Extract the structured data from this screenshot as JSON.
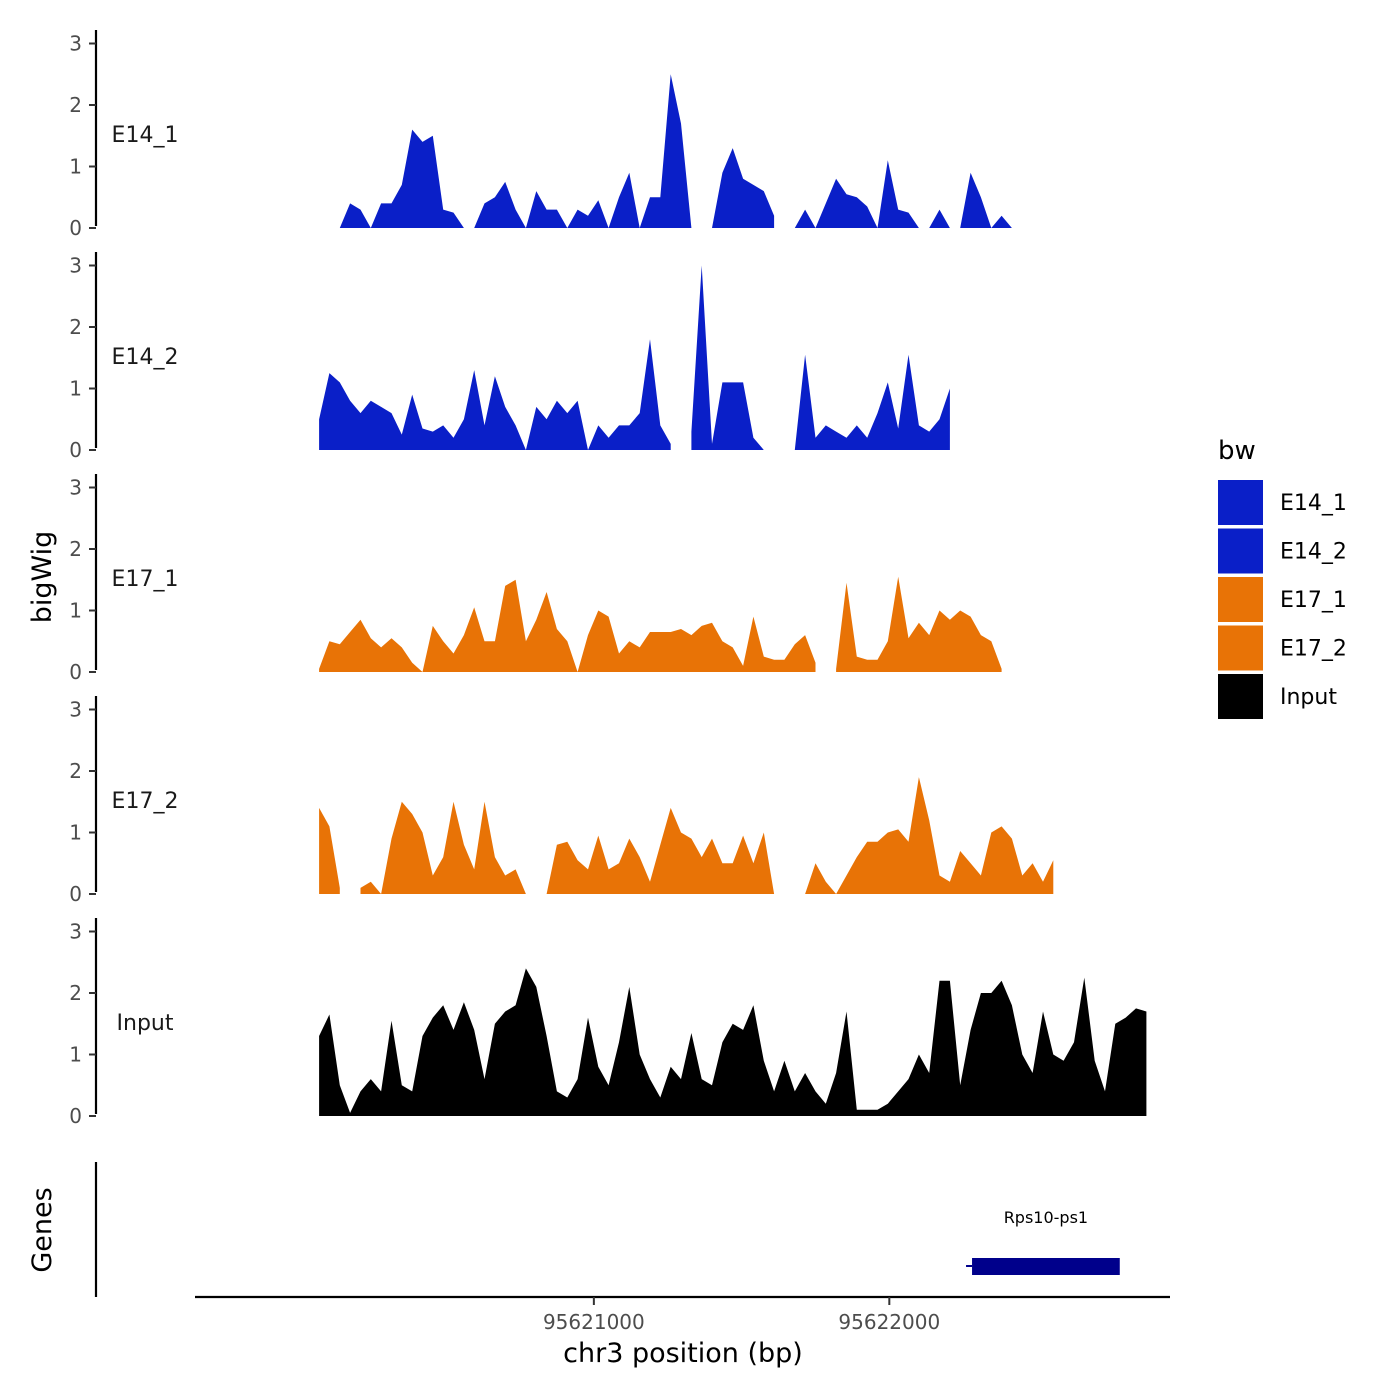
{
  "chart_data": {
    "type": "area",
    "title": "",
    "ylabel": "bigWig",
    "xlabel": "chr3 position (bp)",
    "xlim": [
      95619650,
      95622950
    ],
    "ylim": [
      0,
      3.2
    ],
    "y_ticks": [
      0,
      1,
      2,
      3
    ],
    "x_ticks": [
      95621000,
      95622000
    ],
    "x_tick_labels": [
      "95621000",
      "95622000"
    ],
    "x_start": 95620070,
    "x_end": 95622800,
    "x_step": 35,
    "colors": {
      "E14": "#0A1FC8",
      "E17": "#E87306",
      "Input": "#000000",
      "gene": "#00008B"
    },
    "series": [
      {
        "name": "E14_1",
        "color": "#0A1FC8",
        "values": [
          null,
          null,
          0,
          0.4,
          0.3,
          0,
          0.4,
          0.4,
          0.7,
          1.6,
          1.4,
          1.5,
          0.3,
          0.25,
          0,
          0,
          0.4,
          0.5,
          0.75,
          0.3,
          0,
          0.6,
          0.3,
          0.3,
          0,
          0.3,
          0.2,
          0.45,
          0,
          0.5,
          0.9,
          0,
          0.5,
          0.5,
          2.5,
          1.7,
          0,
          null,
          0,
          0.9,
          1.3,
          0.8,
          0.7,
          0.6,
          0.2,
          null,
          0,
          0.3,
          0,
          0.4,
          0.8,
          0.55,
          0.5,
          0.35,
          0,
          1.1,
          0.3,
          0.25,
          0,
          0,
          0.3,
          0,
          0,
          0.9,
          0.5,
          0,
          0.2,
          0
        ]
      },
      {
        "name": "E14_2",
        "color": "#0A1FC8",
        "values": [
          0.5,
          1.25,
          1.1,
          0.8,
          0.6,
          0.8,
          0.7,
          0.6,
          0.25,
          0.9,
          0.35,
          0.3,
          0.4,
          0.2,
          0.5,
          1.3,
          0.4,
          1.2,
          0.7,
          0.4,
          0,
          0.7,
          0.5,
          0.8,
          0.6,
          0.8,
          0,
          0.4,
          0.2,
          0.4,
          0.4,
          0.6,
          1.8,
          0.4,
          0.1,
          null,
          0.3,
          3.0,
          0.1,
          1.1,
          1.1,
          1.1,
          0.2,
          0,
          null,
          null,
          0,
          1.55,
          0.2,
          0.4,
          0.3,
          0.2,
          0.4,
          0.2,
          0.6,
          1.1,
          0.35,
          1.55,
          0.4,
          0.3,
          0.5,
          1.0
        ]
      },
      {
        "name": "E17_1",
        "color": "#E87306",
        "values": [
          0.05,
          0.5,
          0.45,
          0.65,
          0.85,
          0.55,
          0.4,
          0.55,
          0.4,
          0.15,
          0,
          0.75,
          0.5,
          0.3,
          0.6,
          1.05,
          0.5,
          0.5,
          1.4,
          1.5,
          0.5,
          0.85,
          1.3,
          0.7,
          0.5,
          0,
          0.6,
          1.0,
          0.9,
          0.3,
          0.5,
          0.4,
          0.65,
          0.65,
          0.65,
          0.7,
          0.6,
          0.75,
          0.8,
          0.5,
          0.4,
          0.1,
          0.9,
          0.25,
          0.2,
          0.2,
          0.45,
          0.6,
          0.15,
          null,
          0.05,
          1.45,
          0.25,
          0.2,
          0.2,
          0.5,
          1.55,
          0.55,
          0.8,
          0.6,
          1.0,
          0.85,
          1.0,
          0.9,
          0.6,
          0.5,
          0.05
        ]
      },
      {
        "name": "E17_2",
        "color": "#E87306",
        "values": [
          1.4,
          1.1,
          0.1,
          null,
          0.1,
          0.2,
          0,
          0.9,
          1.5,
          1.3,
          1.0,
          0.3,
          0.6,
          1.5,
          0.8,
          0.4,
          1.5,
          0.6,
          0.3,
          0.4,
          0,
          null,
          0,
          0.8,
          0.85,
          0.55,
          0.4,
          0.95,
          0.4,
          0.5,
          0.9,
          0.6,
          0.2,
          0.8,
          1.4,
          1.0,
          0.9,
          0.6,
          0.9,
          0.5,
          0.5,
          0.95,
          0.5,
          1.0,
          0,
          null,
          null,
          0,
          0.5,
          0.2,
          0,
          0.3,
          0.6,
          0.85,
          0.85,
          1.0,
          1.05,
          0.85,
          1.9,
          1.2,
          0.3,
          0.2,
          0.7,
          0.5,
          0.3,
          1.0,
          1.1,
          0.9,
          0.3,
          0.5,
          0.2,
          0.55
        ]
      },
      {
        "name": "Input",
        "color": "#000000",
        "values": [
          1.3,
          1.65,
          0.5,
          0.05,
          0.4,
          0.6,
          0.4,
          1.55,
          0.5,
          0.4,
          1.3,
          1.6,
          1.8,
          1.4,
          1.85,
          1.4,
          0.6,
          1.5,
          1.7,
          1.8,
          2.4,
          2.1,
          1.3,
          0.4,
          0.3,
          0.6,
          1.6,
          0.8,
          0.5,
          1.2,
          2.1,
          1.0,
          0.6,
          0.3,
          0.8,
          0.6,
          1.35,
          0.6,
          0.5,
          1.2,
          1.5,
          1.4,
          1.8,
          0.9,
          0.4,
          0.9,
          0.4,
          0.7,
          0.4,
          0.2,
          0.7,
          1.7,
          0.1,
          0.1,
          0.1,
          0.2,
          0.4,
          0.6,
          1.0,
          0.7,
          2.2,
          2.2,
          0.5,
          1.4,
          2.0,
          2.0,
          2.2,
          1.8,
          1.0,
          0.7,
          1.7,
          1.0,
          0.9,
          1.2,
          2.25,
          0.9,
          0.4,
          1.5,
          1.6,
          1.75,
          1.7
        ]
      }
    ],
    "genes": [
      {
        "name": "Rps10-ps1",
        "start": 95622280,
        "end": 95622780
      }
    ],
    "gene_track_label": "Genes",
    "legend": {
      "title": "bw",
      "entries": [
        "E14_1",
        "E14_2",
        "E17_1",
        "E17_2",
        "Input"
      ],
      "position": "right"
    }
  }
}
